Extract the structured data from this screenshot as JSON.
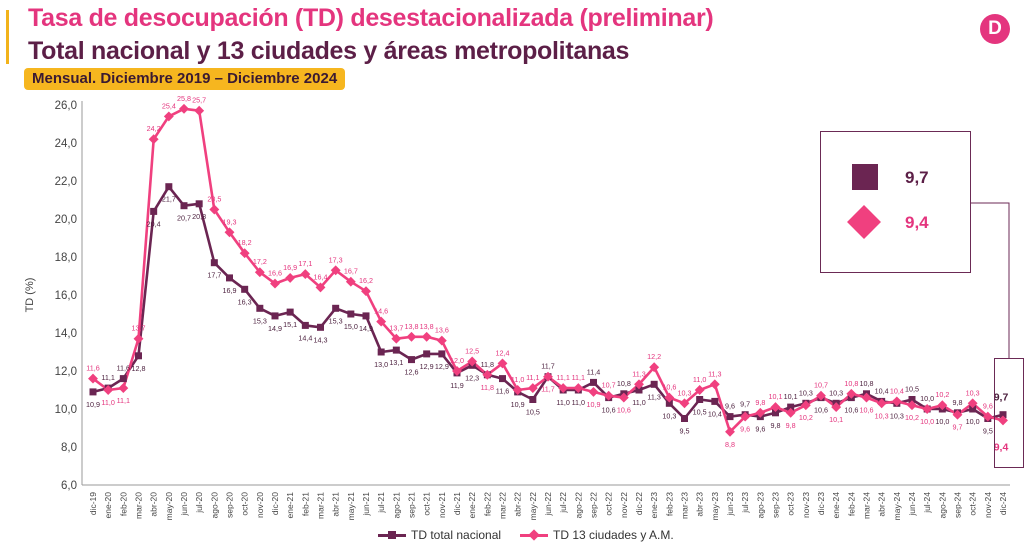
{
  "header": {
    "title_line1": "Tasa de desocupación (TD) desestacionalizada (preliminar)",
    "title_line2": "Total nacional y 13 ciudades y áreas metropolitanas",
    "subtitle": "Mensual. Diciembre 2019 – Diciembre 2024",
    "logo_letter": "D"
  },
  "highlight": {
    "nacional_value": "9,7",
    "ciudades_value": "9,4"
  },
  "colors": {
    "nacional": "#6b2552",
    "ciudades": "#f0407f",
    "title_pink": "#e4357e",
    "title_dark": "#5c1f47",
    "badge": "#f6b61f"
  },
  "chart_data": {
    "type": "line",
    "ylabel": "TD (%)",
    "xlabel": "",
    "ylim": [
      6,
      26
    ],
    "yticks": [
      "6,0",
      "8,0",
      "10,0",
      "12,0",
      "14,0",
      "16,0",
      "18,0",
      "20,0",
      "22,0",
      "24,0",
      "26,0"
    ],
    "grid": false,
    "legend_position": "bottom",
    "categories": [
      "dic-19",
      "ene-20",
      "feb-20",
      "mar-20",
      "abr-20",
      "may-20",
      "jun-20",
      "jul-20",
      "ago-20",
      "sep-20",
      "oct-20",
      "nov-20",
      "dic-20",
      "ene-21",
      "feb-21",
      "mar-21",
      "abr-21",
      "may-21",
      "jun-21",
      "jul-21",
      "ago-21",
      "sep-21",
      "oct-21",
      "nov-21",
      "dic-21",
      "ene-22",
      "feb-22",
      "mar-22",
      "abr-22",
      "may-22",
      "jun-22",
      "jul-22",
      "ago-22",
      "sep-22",
      "oct-22",
      "nov-22",
      "dic-22",
      "ene-23",
      "feb-23",
      "mar-23",
      "abr-23",
      "may-23",
      "jun-23",
      "jul-23",
      "ago-23",
      "sep-23",
      "oct-23",
      "nov-23",
      "dic-23",
      "ene-24",
      "feb-24",
      "mar-24",
      "abr-24",
      "may-24",
      "jun-24",
      "jul-24",
      "ago-24",
      "sep-24",
      "oct-24",
      "nov-24",
      "dic-24"
    ],
    "series": [
      {
        "name": "TD total nacional",
        "values": [
          10.9,
          11.1,
          11.6,
          12.8,
          20.4,
          21.7,
          20.7,
          20.8,
          17.7,
          16.9,
          16.3,
          15.3,
          14.9,
          15.1,
          14.4,
          14.3,
          15.3,
          15.0,
          14.9,
          13.0,
          13.1,
          12.6,
          12.9,
          12.9,
          11.9,
          12.3,
          11.8,
          11.6,
          10.9,
          10.5,
          11.7,
          11.0,
          11.0,
          11.4,
          10.6,
          10.8,
          11.0,
          11.3,
          10.3,
          9.5,
          10.5,
          10.4,
          9.6,
          9.7,
          9.6,
          9.8,
          10.1,
          10.3,
          10.6,
          10.3,
          10.6,
          10.8,
          10.4,
          10.3,
          10.5,
          10.0,
          10.0,
          9.8,
          10.0,
          9.5,
          9.7
        ],
        "labels": [
          "10,9",
          "11,1",
          "11,6",
          "12,8",
          "20,4",
          "21,7",
          "20,7",
          "20,8",
          "17,7",
          "16,9",
          "16,3",
          "15,3",
          "14,9",
          "15,1",
          "14,4",
          "14,3",
          "15,3",
          "15,0",
          "14,9",
          "13,0",
          "13,1",
          "12,6",
          "12,9",
          "12,9",
          "11,9",
          "12,3",
          "11,8",
          "11,6",
          "10,9",
          "10,5",
          "11,7",
          "11,0",
          "11,0",
          "11,4",
          "10,6",
          "10,8",
          "11,0",
          "11,3",
          "10,3",
          "9,5",
          "10,5",
          "10,4",
          "9,6",
          "9,7",
          "9,6",
          "9,8",
          "10,1",
          "10,3",
          "10,6",
          "10,3",
          "10,6",
          "10,8",
          "10,4",
          "10,3",
          "10,5",
          "10,0",
          "10,0",
          "9,8",
          "10,0",
          "9,5",
          "9,7"
        ]
      },
      {
        "name": "TD 13 ciudades y A.M.",
        "values": [
          11.6,
          11.0,
          11.1,
          13.7,
          24.2,
          25.4,
          25.8,
          25.7,
          20.5,
          19.3,
          18.2,
          17.2,
          16.6,
          16.9,
          17.1,
          16.4,
          17.3,
          16.7,
          16.2,
          14.6,
          13.7,
          13.8,
          13.8,
          13.6,
          12.0,
          12.5,
          11.8,
          12.4,
          11.0,
          11.1,
          11.7,
          11.1,
          11.1,
          10.9,
          10.7,
          10.6,
          11.3,
          12.2,
          10.6,
          10.3,
          11.0,
          11.3,
          8.8,
          9.6,
          9.8,
          10.1,
          9.8,
          10.2,
          10.7,
          10.1,
          10.8,
          10.6,
          10.3,
          10.4,
          10.2,
          10.0,
          10.2,
          9.7,
          10.3,
          9.6,
          9.4
        ],
        "labels": [
          "11,6",
          "11,0",
          "11,1",
          "13,7",
          "24,2",
          "25,4",
          "25,8",
          "25,7",
          "20,5",
          "19,3",
          "18,2",
          "17,2",
          "16,6",
          "16,9",
          "17,1",
          "16,4",
          "17,3",
          "16,7",
          "16,2",
          "14,6",
          "13,7",
          "13,8",
          "13,8",
          "13,6",
          "12,0",
          "12,5",
          "11,8",
          "12,4",
          "11,0",
          "11,1",
          "11,7",
          "11,1",
          "11,1",
          "10,9",
          "10,7",
          "10,6",
          "11,3",
          "12,2",
          "10,6",
          "10,3",
          "11,0",
          "11,3",
          "8,8",
          "9,6",
          "9,8",
          "10,1",
          "9,8",
          "10,2",
          "10,7",
          "10,1",
          "10,8",
          "10,6",
          "10,3",
          "10,4",
          "10,2",
          "10,0",
          "10,2",
          "9,7",
          "10,3",
          "9,6",
          "9,4"
        ]
      }
    ]
  }
}
